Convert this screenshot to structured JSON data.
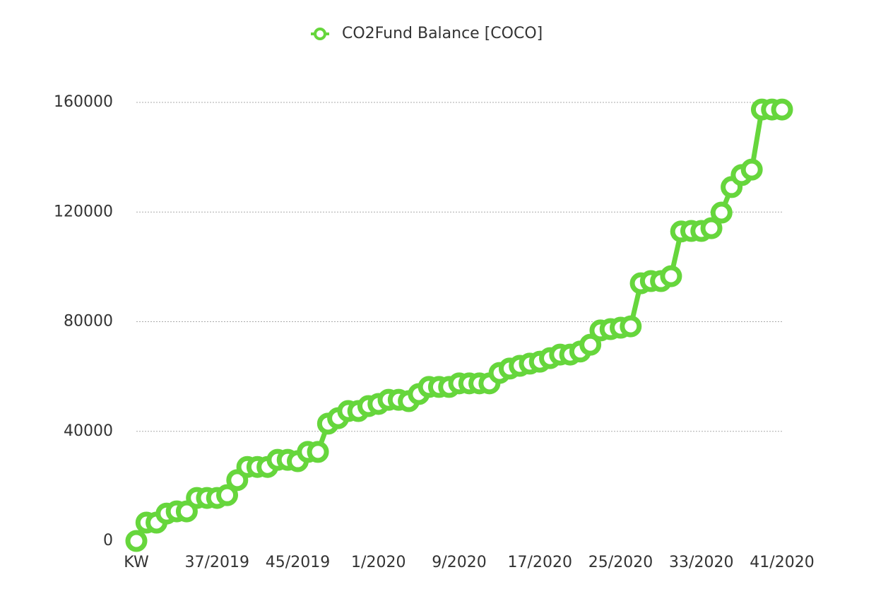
{
  "chart_data": {
    "type": "line",
    "categories": [
      "KW",
      null,
      null,
      null,
      null,
      null,
      null,
      null,
      "37/2019",
      null,
      null,
      null,
      null,
      null,
      null,
      null,
      "45/2019",
      null,
      null,
      null,
      null,
      null,
      null,
      null,
      "1/2020",
      null,
      null,
      null,
      null,
      null,
      null,
      null,
      "9/2020",
      null,
      null,
      null,
      null,
      null,
      null,
      null,
      "17/2020",
      null,
      null,
      null,
      null,
      null,
      null,
      null,
      "25/2020",
      null,
      null,
      null,
      null,
      null,
      null,
      null,
      "33/2020",
      null,
      null,
      null,
      null,
      null,
      null,
      null,
      "41/2020"
    ],
    "series": [
      {
        "name": "CO2Fund Balance [COCO]",
        "color": "#66d63c",
        "values": [
          0,
          6700,
          6700,
          10000,
          10800,
          10800,
          15700,
          15700,
          15700,
          16700,
          22200,
          27000,
          27000,
          27000,
          29600,
          29600,
          29100,
          32500,
          32500,
          42800,
          44800,
          47400,
          47400,
          49200,
          50000,
          51500,
          51500,
          51000,
          53600,
          56200,
          56200,
          56200,
          57500,
          57500,
          57500,
          57500,
          61300,
          62900,
          63900,
          64700,
          65400,
          66700,
          68000,
          68000,
          69100,
          71600,
          76800,
          77300,
          77800,
          78300,
          94000,
          94800,
          94800,
          96600,
          112900,
          113100,
          113100,
          114100,
          119800,
          129100,
          133500,
          135500,
          157400,
          157400,
          157400
        ]
      }
    ],
    "ylim": [
      0,
      160000
    ],
    "yticks": [
      0,
      40000,
      80000,
      120000,
      160000
    ],
    "grid": true,
    "legend": "top"
  }
}
